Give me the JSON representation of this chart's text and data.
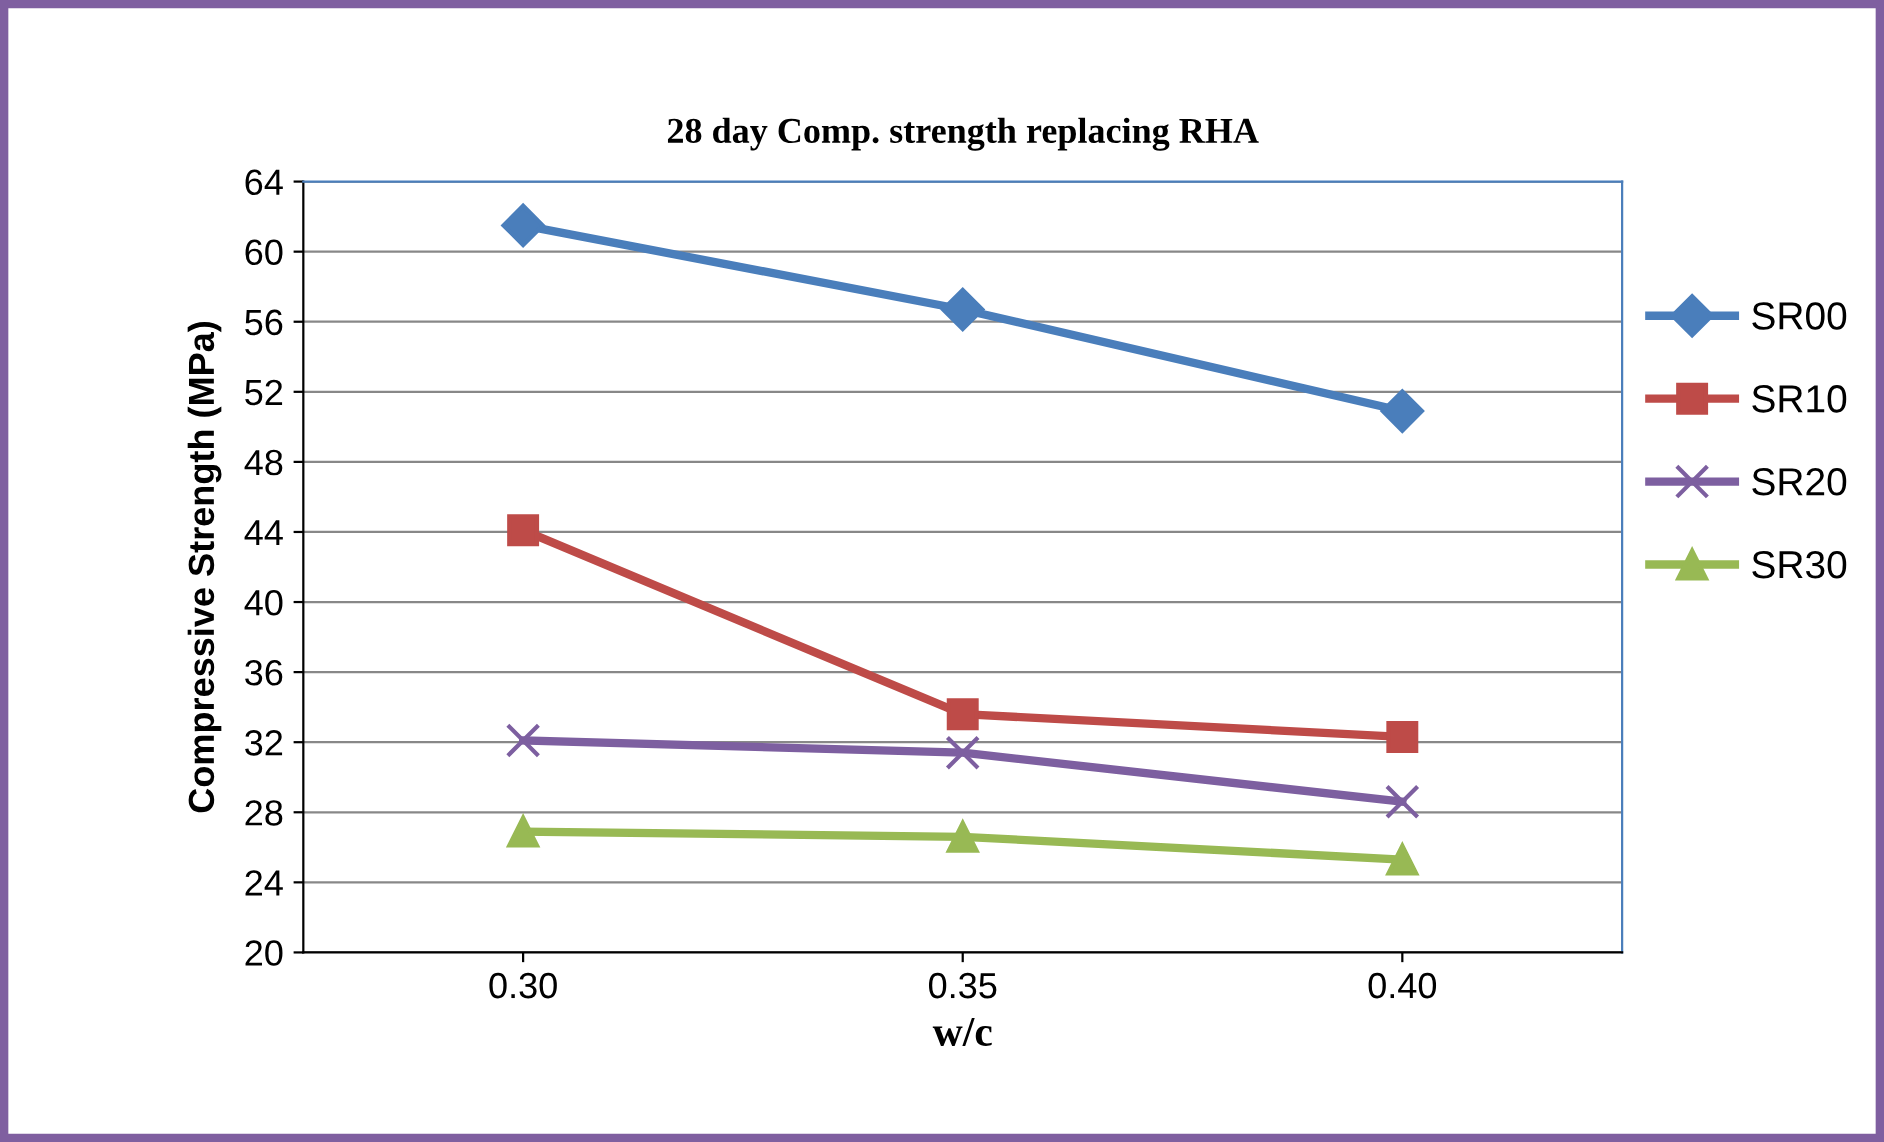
{
  "chart_data": {
    "type": "line",
    "title": "28 day Comp. strength replacing RHA",
    "xlabel": "w/c",
    "ylabel": "Compressive Strength (MPa)",
    "categories": [
      "0.30",
      "0.35",
      "0.40"
    ],
    "series": [
      {
        "name": "SR00",
        "color": "#4a7ebb",
        "marker": "diamond",
        "values": [
          61.5,
          56.7,
          50.9
        ]
      },
      {
        "name": "SR10",
        "color": "#be4b48",
        "marker": "square",
        "values": [
          44.1,
          33.6,
          32.3
        ]
      },
      {
        "name": "SR20",
        "color": "#7d5fa0",
        "marker": "cross",
        "values": [
          32.1,
          31.4,
          28.6
        ]
      },
      {
        "name": "SR30",
        "color": "#98b954",
        "marker": "triangle",
        "values": [
          26.9,
          26.6,
          25.3
        ]
      }
    ],
    "ylim": [
      20,
      64
    ],
    "yticks": [
      20,
      24,
      28,
      32,
      36,
      40,
      44,
      48,
      52,
      56,
      60,
      64
    ],
    "grid": "y",
    "legend": "right",
    "line_style": "solid"
  }
}
